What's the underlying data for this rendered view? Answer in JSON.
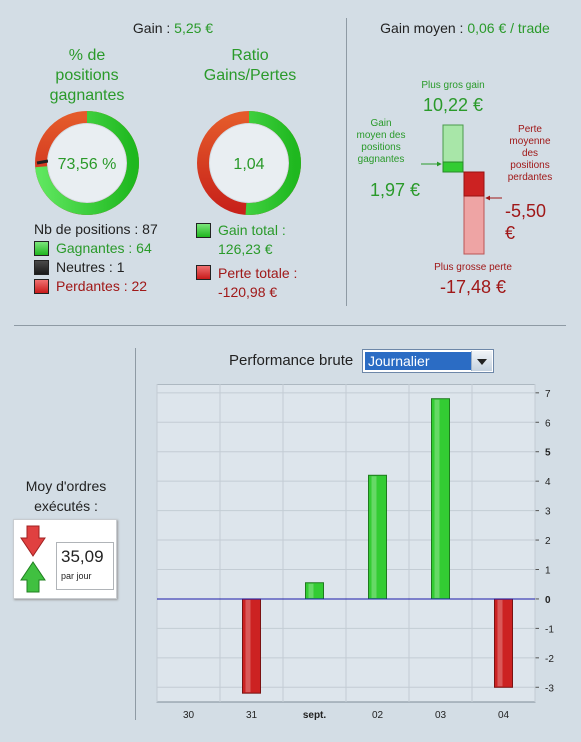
{
  "header": {
    "gain_label": "Gain : ",
    "gain_value": "5,25 €",
    "avg_gain_label": "Gain moyen : ",
    "avg_gain_value": "0,06 € / trade"
  },
  "win_pct": {
    "title_lines": [
      "% de",
      "positions",
      "gagnantes"
    ],
    "value": "73,56 %",
    "fraction": 0.7356
  },
  "ratio": {
    "title_lines": [
      "Ratio",
      "Gains/Pertes"
    ],
    "value": "1,04",
    "green_fraction": 0.51
  },
  "positions": {
    "total": "Nb de positions : 87",
    "winners": "Gagnantes : 64",
    "neutral": "Neutres : 1",
    "losers": "Perdantes : 22"
  },
  "totals": {
    "gain_total_label": "Gain total :",
    "gain_total_value": "126,23 €",
    "loss_total_label": "Perte totale :",
    "loss_total_value": "-120,98 €"
  },
  "extremes": {
    "biggest_gain_label": "Plus gros gain",
    "biggest_gain_value": "10,22 €",
    "avg_win_label_lines": [
      "Gain",
      "moyen des",
      "positions",
      "gagnantes"
    ],
    "avg_win_value": "1,97 €",
    "avg_loss_label_lines": [
      "Perte",
      "moyenne",
      "des",
      "positions",
      "perdantes"
    ],
    "avg_loss_value_lines": [
      "-5,50",
      "€"
    ],
    "biggest_loss_label": "Plus grosse perte",
    "biggest_loss_value": "-17,48 €"
  },
  "performance": {
    "label": "Performance brute",
    "period_selected": "Journalier"
  },
  "orders": {
    "title_lines": [
      "Moy d'ordres",
      "exécutés :"
    ],
    "value": "35,09",
    "unit": "par jour"
  },
  "colors": {
    "gain": "#2a9a2a",
    "loss": "#a01818",
    "bar_green": "#33cc33",
    "bar_red": "#cc2222",
    "zero_line": "#1a1aaa"
  },
  "chart_data": {
    "type": "bar",
    "categories": [
      "30",
      "31",
      "sept.",
      "02",
      "03",
      "04"
    ],
    "values": [
      0,
      -3.2,
      0.55,
      4.2,
      6.8,
      -3.0
    ],
    "ylim": [
      -3.5,
      7.3
    ],
    "yticks": [
      7,
      6,
      5,
      4,
      3,
      2,
      1,
      0,
      -1,
      -2,
      -3
    ],
    "grid": true
  }
}
